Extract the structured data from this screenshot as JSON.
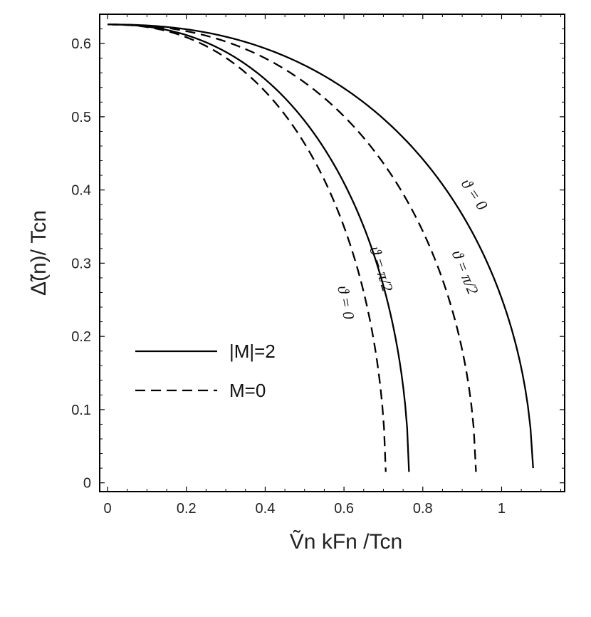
{
  "chart_data": {
    "type": "line",
    "xlabel": "Ṽn kFn /Tcn",
    "ylabel": "Δ̃(n)/ Tcn",
    "xlim": [
      -0.02,
      1.16
    ],
    "ylim": [
      -0.012,
      0.64
    ],
    "x_ticks": [
      "0",
      "0.2",
      "0.4",
      "0.6",
      "0.8",
      "1"
    ],
    "y_ticks": [
      "0",
      "0.1",
      "0.2",
      "0.3",
      "0.4",
      "0.5",
      "0.6"
    ],
    "x_tick_values": [
      0,
      0.2,
      0.4,
      0.6,
      0.8,
      1.0
    ],
    "y_tick_values": [
      0,
      0.1,
      0.2,
      0.3,
      0.4,
      0.5,
      0.6
    ],
    "legend": {
      "placement": "lower-left",
      "entries": [
        {
          "label": "|M|=2",
          "style": "solid"
        },
        {
          "label": "M=0",
          "style": "dashed"
        }
      ]
    },
    "series": [
      {
        "curve_label": "ϑ = 0",
        "style": "dashed",
        "x_end": 0.706,
        "y0": 0.626,
        "y_end": 0.015
      },
      {
        "curve_label": "ϑ = π/2",
        "style": "solid",
        "x_end": 0.765,
        "y0": 0.626,
        "y_end": 0.015
      },
      {
        "curve_label": "ϑ = π/2",
        "style": "dashed",
        "x_end": 0.935,
        "y0": 0.626,
        "y_end": 0.015
      },
      {
        "curve_label": "ϑ = 0",
        "style": "solid",
        "x_end": 1.08,
        "y0": 0.626,
        "y_end": 0.02
      }
    ]
  }
}
